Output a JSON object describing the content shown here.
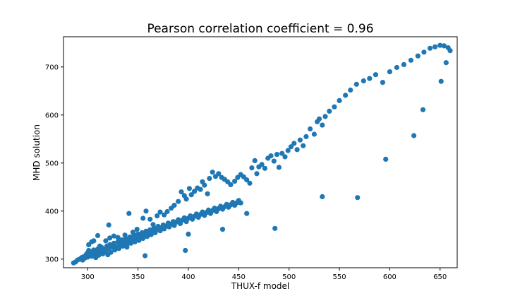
{
  "chart_data": {
    "type": "scatter",
    "title": "Pearson correlation coefficient = 0.96",
    "xlabel": "THUX-f model",
    "ylabel": "MHD solution",
    "xlim": [
      276,
      667
    ],
    "ylim": [
      282,
      763
    ],
    "xticks": [
      300,
      350,
      400,
      450,
      500,
      550,
      600,
      650
    ],
    "yticks": [
      300,
      400,
      500,
      600,
      700
    ],
    "grid": false,
    "legend": "none",
    "marker_color": "#1f77b4",
    "points": [
      [
        286,
        292
      ],
      [
        288,
        294
      ],
      [
        290,
        298
      ],
      [
        292,
        300
      ],
      [
        294,
        303
      ],
      [
        295,
        298
      ],
      [
        296,
        305
      ],
      [
        297,
        302
      ],
      [
        298,
        307
      ],
      [
        299,
        311
      ],
      [
        300,
        304
      ],
      [
        300,
        313
      ],
      [
        301,
        318
      ],
      [
        302,
        309
      ],
      [
        303,
        315
      ],
      [
        304,
        306
      ],
      [
        305,
        312
      ],
      [
        306,
        319
      ],
      [
        307,
        310
      ],
      [
        308,
        303
      ],
      [
        309,
        316
      ],
      [
        310,
        321
      ],
      [
        311,
        308
      ],
      [
        312,
        314
      ],
      [
        313,
        318
      ],
      [
        314,
        324
      ],
      [
        315,
        311
      ],
      [
        316,
        320
      ],
      [
        318,
        316
      ],
      [
        319,
        327
      ],
      [
        320,
        309
      ],
      [
        321,
        322
      ],
      [
        322,
        330
      ],
      [
        323,
        314
      ],
      [
        324,
        325
      ],
      [
        326,
        333
      ],
      [
        327,
        319
      ],
      [
        328,
        326
      ],
      [
        330,
        336
      ],
      [
        331,
        322
      ],
      [
        332,
        331
      ],
      [
        334,
        340
      ],
      [
        335,
        327
      ],
      [
        336,
        334
      ],
      [
        338,
        343
      ],
      [
        339,
        330
      ],
      [
        340,
        337
      ],
      [
        342,
        346
      ],
      [
        343,
        333
      ],
      [
        344,
        341
      ],
      [
        346,
        350
      ],
      [
        347,
        336
      ],
      [
        348,
        344
      ],
      [
        350,
        352
      ],
      [
        351,
        339
      ],
      [
        352,
        347
      ],
      [
        354,
        355
      ],
      [
        355,
        343
      ],
      [
        356,
        350
      ],
      [
        358,
        358
      ],
      [
        359,
        347
      ],
      [
        360,
        353
      ],
      [
        362,
        361
      ],
      [
        363,
        351
      ],
      [
        364,
        357
      ],
      [
        366,
        365
      ],
      [
        367,
        355
      ],
      [
        368,
        361
      ],
      [
        370,
        368
      ],
      [
        372,
        359
      ],
      [
        373,
        365
      ],
      [
        375,
        371
      ],
      [
        376,
        363
      ],
      [
        378,
        369
      ],
      [
        380,
        375
      ],
      [
        381,
        367
      ],
      [
        383,
        373
      ],
      [
        385,
        378
      ],
      [
        386,
        370
      ],
      [
        388,
        377
      ],
      [
        390,
        382
      ],
      [
        392,
        374
      ],
      [
        394,
        381
      ],
      [
        396,
        386
      ],
      [
        398,
        378
      ],
      [
        400,
        385
      ],
      [
        402,
        390
      ],
      [
        404,
        383
      ],
      [
        406,
        389
      ],
      [
        408,
        394
      ],
      [
        410,
        387
      ],
      [
        412,
        393
      ],
      [
        414,
        398
      ],
      [
        416,
        391
      ],
      [
        418,
        397
      ],
      [
        420,
        402
      ],
      [
        422,
        395
      ],
      [
        424,
        401
      ],
      [
        426,
        406
      ],
      [
        428,
        399
      ],
      [
        430,
        405
      ],
      [
        432,
        410
      ],
      [
        434,
        404
      ],
      [
        436,
        409
      ],
      [
        438,
        414
      ],
      [
        440,
        408
      ],
      [
        442,
        413
      ],
      [
        444,
        418
      ],
      [
        446,
        412
      ],
      [
        448,
        417
      ],
      [
        450,
        422
      ],
      [
        452,
        417
      ],
      [
        301,
        330
      ],
      [
        304,
        336
      ],
      [
        310,
        349
      ],
      [
        318,
        338
      ],
      [
        322,
        344
      ],
      [
        326,
        348
      ],
      [
        330,
        345
      ],
      [
        337,
        350
      ],
      [
        341,
        395
      ],
      [
        345,
        356
      ],
      [
        349,
        362
      ],
      [
        355,
        385
      ],
      [
        358,
        400
      ],
      [
        362,
        383
      ],
      [
        365,
        372
      ],
      [
        369,
        390
      ],
      [
        372,
        398
      ],
      [
        376,
        392
      ],
      [
        379,
        399
      ],
      [
        383,
        406
      ],
      [
        386,
        412
      ],
      [
        390,
        420
      ],
      [
        393,
        440
      ],
      [
        396,
        432
      ],
      [
        398,
        425
      ],
      [
        401,
        447
      ],
      [
        403,
        434
      ],
      [
        406,
        441
      ],
      [
        409,
        448
      ],
      [
        412,
        445
      ],
      [
        414,
        461
      ],
      [
        416,
        454
      ],
      [
        419,
        436
      ],
      [
        421,
        468
      ],
      [
        424,
        481
      ],
      [
        427,
        472
      ],
      [
        430,
        478
      ],
      [
        433,
        470
      ],
      [
        436,
        466
      ],
      [
        439,
        461
      ],
      [
        442,
        455
      ],
      [
        446,
        462
      ],
      [
        449,
        470
      ],
      [
        452,
        476
      ],
      [
        455,
        471
      ],
      [
        458,
        465
      ],
      [
        461,
        458
      ],
      [
        463,
        490
      ],
      [
        466,
        505
      ],
      [
        468,
        478
      ],
      [
        470,
        492
      ],
      [
        473,
        497
      ],
      [
        476,
        489
      ],
      [
        479,
        510
      ],
      [
        482,
        515
      ],
      [
        485,
        504
      ],
      [
        488,
        518
      ],
      [
        490,
        491
      ],
      [
        493,
        520
      ],
      [
        496,
        513
      ],
      [
        499,
        526
      ],
      [
        502,
        534
      ],
      [
        505,
        541
      ],
      [
        508,
        528
      ],
      [
        511,
        548
      ],
      [
        514,
        536
      ],
      [
        517,
        555
      ],
      [
        521,
        571
      ],
      [
        525,
        560
      ],
      [
        528,
        586
      ],
      [
        530,
        592
      ],
      [
        533,
        579
      ],
      [
        536,
        597
      ],
      [
        540,
        608
      ],
      [
        545,
        617
      ],
      [
        550,
        630
      ],
      [
        556,
        641
      ],
      [
        561,
        652
      ],
      [
        567,
        664
      ],
      [
        574,
        671
      ],
      [
        580,
        676
      ],
      [
        586,
        684
      ],
      [
        593,
        668
      ],
      [
        600,
        690
      ],
      [
        607,
        699
      ],
      [
        614,
        705
      ],
      [
        621,
        714
      ],
      [
        628,
        723
      ],
      [
        634,
        731
      ],
      [
        640,
        739
      ],
      [
        645,
        742
      ],
      [
        650,
        745
      ],
      [
        654,
        744
      ],
      [
        658,
        740
      ],
      [
        660,
        734
      ],
      [
        656,
        709
      ],
      [
        651,
        670
      ],
      [
        633,
        611
      ],
      [
        624,
        557
      ],
      [
        596,
        508
      ],
      [
        568,
        428
      ],
      [
        533,
        430
      ],
      [
        486,
        364
      ],
      [
        458,
        395
      ],
      [
        434,
        362
      ],
      [
        400,
        352
      ],
      [
        397,
        318
      ],
      [
        357,
        307
      ],
      [
        339,
        325
      ],
      [
        321,
        371
      ],
      [
        312,
        327
      ],
      [
        306,
        338
      ]
    ]
  }
}
